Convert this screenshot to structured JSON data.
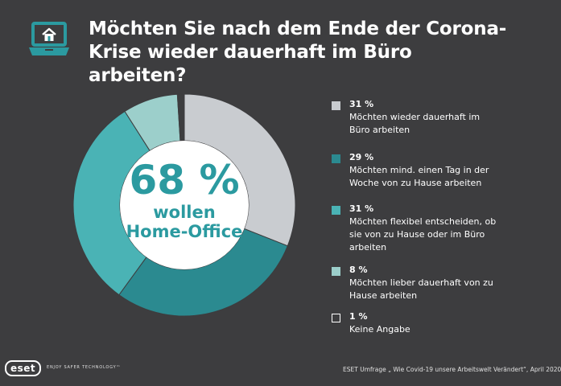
{
  "header": {
    "icon": "laptop-home-icon",
    "title_line1": "Möchten Sie nach dem Ende der Corona-",
    "title_line2": "Krise wieder dauerhaft im Büro arbeiten?"
  },
  "center": {
    "percent": "68 %",
    "line1": "wollen",
    "line2": "Home-Office"
  },
  "colors": {
    "background": "#3d3d3f",
    "accent": "#2b9aa0"
  },
  "chart_data": {
    "type": "pie",
    "categories": [
      "Möchten wieder dauerhaft im Büro arbeiten",
      "Möchten mind. einen Tag in der Woche von zu Hause arbeiten",
      "Möchten flexibel entscheiden, ob sie von zu Hause oder im Büro arbeiten",
      "Möchten lieber dauerhaft von zu Hause arbeiten",
      "Keine Angabe"
    ],
    "values": [
      31,
      29,
      31,
      8,
      1
    ],
    "colors": [
      "#c9ccd0",
      "#2b8a90",
      "#4ab3b5",
      "#9ccfcb",
      "#3d3d3f"
    ]
  },
  "legend": [
    {
      "pct": "31 %",
      "lines": [
        "Möchten wieder dauerhaft im",
        "Büro arbeiten"
      ],
      "color": "#c9ccd0"
    },
    {
      "pct": "29 %",
      "lines": [
        "Möchten mind. einen Tag in der",
        "Woche von zu Hause arbeiten"
      ],
      "color": "#2b8a90"
    },
    {
      "pct": "31 %",
      "lines": [
        "Möchten flexibel entscheiden, ob",
        "sie von zu Hause oder im Büro",
        "arbeiten"
      ],
      "color": "#4ab3b5"
    },
    {
      "pct": "8 %",
      "lines": [
        "Möchten lieber dauerhaft von zu",
        "Hause arbeiten"
      ],
      "color": "#9ccfcb"
    },
    {
      "pct": "1 %",
      "lines": [
        "Keine Angabe"
      ],
      "color": "#3d3d3f"
    }
  ],
  "footer": {
    "logo": "eset",
    "tagline": "ENJOY SAFER TECHNOLOGY™",
    "source": "ESET Umfrage „ Wie Covid-19 unsere Arbeitswelt Verändert“, April 2020"
  }
}
